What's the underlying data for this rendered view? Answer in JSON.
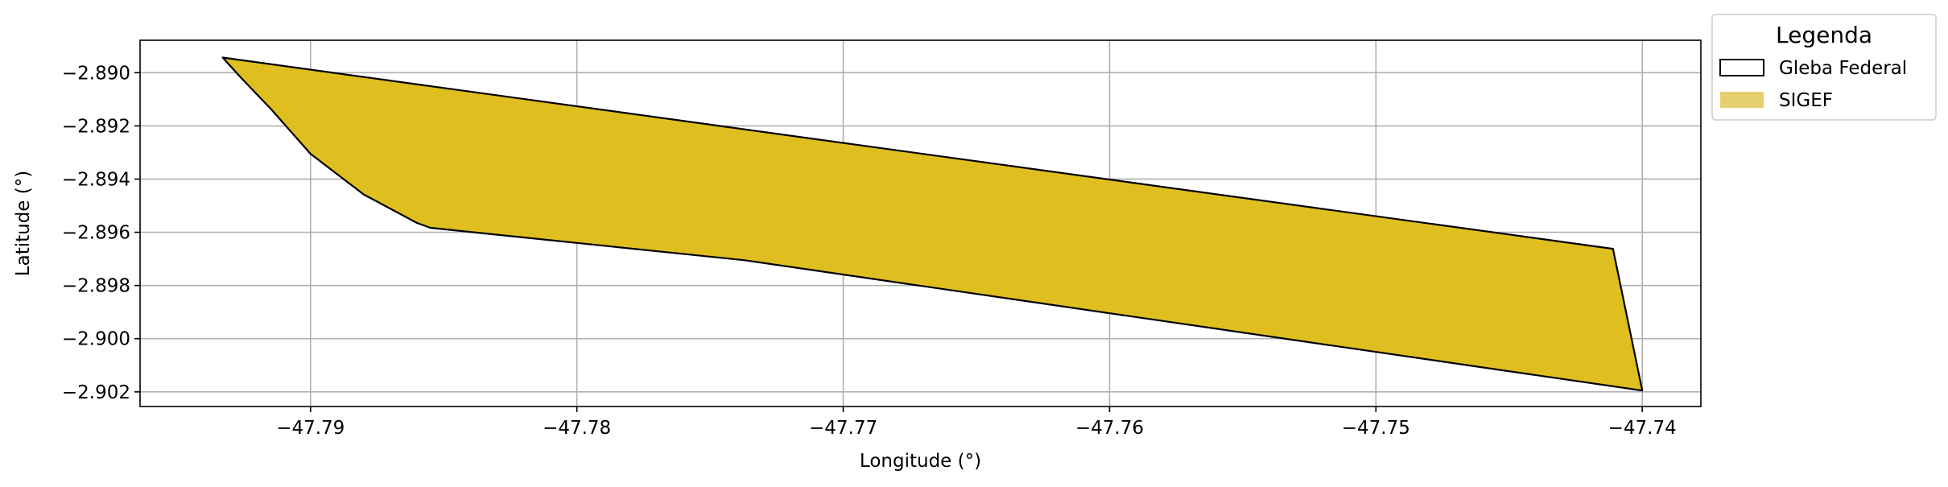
{
  "chart_data": {
    "type": "area",
    "title": "",
    "xlabel": "Longitude (°)",
    "ylabel": "Latitude (°)",
    "xlim": [
      -47.7964,
      -47.7378
    ],
    "ylim": [
      -2.90255,
      -2.88878
    ],
    "grid": true,
    "legend": {
      "title": "Legenda",
      "placement": "outside-top-right",
      "entries": [
        {
          "name": "Gleba Federal",
          "style": "outline",
          "edge_color": "#000000",
          "fill_color": "none"
        },
        {
          "name": "SIGEF",
          "style": "fill",
          "edge_color": "none",
          "fill_color": "#e6d06e"
        }
      ]
    },
    "x_ticks": [
      {
        "value": -47.79,
        "label": "−47.79"
      },
      {
        "value": -47.78,
        "label": "−47.78"
      },
      {
        "value": -47.77,
        "label": "−47.77"
      },
      {
        "value": -47.76,
        "label": "−47.76"
      },
      {
        "value": -47.75,
        "label": "−47.75"
      },
      {
        "value": -47.74,
        "label": "−47.74"
      }
    ],
    "y_ticks": [
      {
        "value": -2.89,
        "label": "−2.890"
      },
      {
        "value": -2.892,
        "label": "−2.892"
      },
      {
        "value": -2.894,
        "label": "−2.894"
      },
      {
        "value": -2.896,
        "label": "−2.896"
      },
      {
        "value": -2.898,
        "label": "−2.898"
      },
      {
        "value": -2.9,
        "label": "−2.900"
      },
      {
        "value": -2.902,
        "label": "−2.902"
      }
    ],
    "series": [
      {
        "name": "SIGEF",
        "fill_color": "#dfbf20",
        "edge_color": "#000000",
        "polygon": [
          [
            -47.7933,
            -2.88943
          ],
          [
            -47.7411,
            -2.89662
          ],
          [
            -47.74,
            -2.90195
          ],
          [
            -47.7737,
            -2.89705
          ],
          [
            -47.7855,
            -2.89583
          ],
          [
            -47.786,
            -2.89565
          ],
          [
            -47.788,
            -2.89458
          ],
          [
            -47.79,
            -2.89305
          ],
          [
            -47.7915,
            -2.89135
          ],
          [
            -47.7926,
            -2.8902
          ],
          [
            -47.7933,
            -2.88943
          ]
        ]
      }
    ]
  }
}
